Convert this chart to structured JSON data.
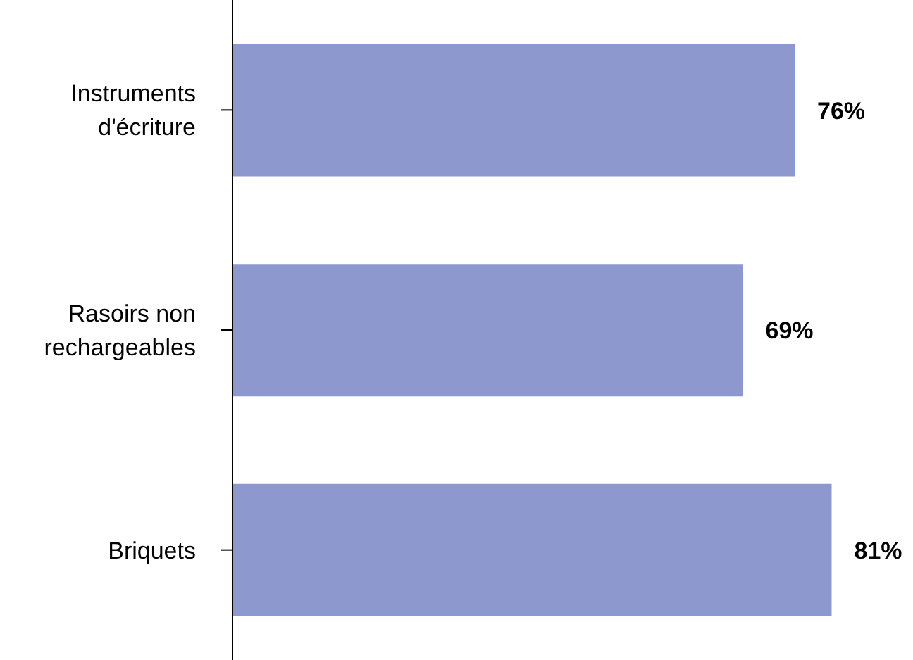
{
  "chart_data": {
    "type": "bar",
    "orientation": "horizontal",
    "categories": [
      "Instruments d'écriture",
      "Rasoirs non rechargeables",
      "Briquets"
    ],
    "values": [
      76,
      69,
      81
    ],
    "value_labels": [
      "76%",
      "69%",
      "81%"
    ],
    "color": "#8d98cf",
    "xlim": [
      0,
      92
    ],
    "tick_labels": "y"
  }
}
